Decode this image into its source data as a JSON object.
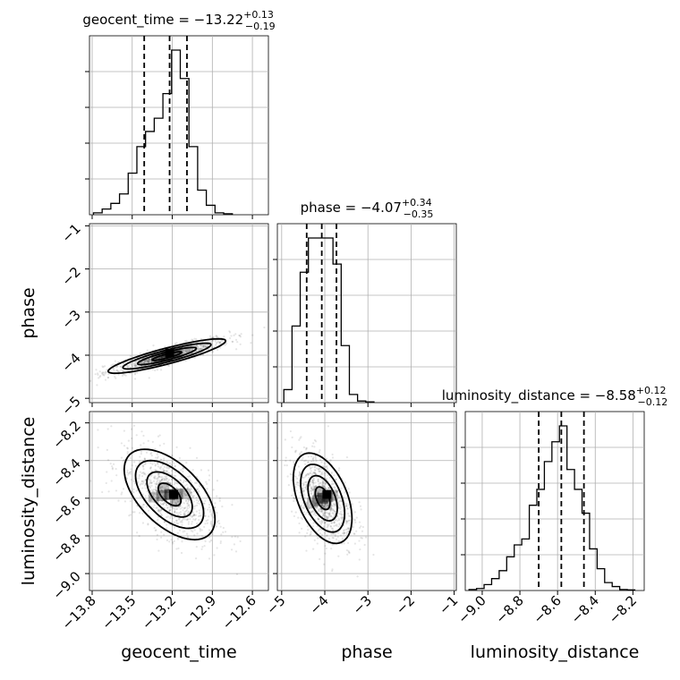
{
  "chart_data": {
    "type": "corner",
    "parameters": [
      "geocent_time",
      "phase",
      "luminosity_distance"
    ],
    "axis_labels": {
      "geocent_time": "geocent_time",
      "phase": "phase",
      "luminosity_distance": "luminosity_distance"
    },
    "ranges": {
      "geocent_time": [
        -13.82,
        -12.48
      ],
      "phase": [
        -5.1,
        -0.95
      ],
      "luminosity_distance": [
        -9.09,
        -8.14
      ]
    },
    "ticks": {
      "geocent_time": [
        {
          "v": -13.8,
          "label": "−13.8"
        },
        {
          "v": -13.5,
          "label": "−13.5"
        },
        {
          "v": -13.2,
          "label": "−13.2"
        },
        {
          "v": -12.9,
          "label": "−12.9"
        },
        {
          "v": -12.6,
          "label": "−12.6"
        }
      ],
      "phase": [
        {
          "v": -5,
          "label": "−5"
        },
        {
          "v": -4,
          "label": "−4"
        },
        {
          "v": -3,
          "label": "−3"
        },
        {
          "v": -2,
          "label": "−2"
        },
        {
          "v": -1,
          "label": "−1"
        }
      ],
      "luminosity_distance": [
        {
          "v": -9.0,
          "label": "−9.0"
        },
        {
          "v": -8.8,
          "label": "−8.8"
        },
        {
          "v": -8.6,
          "label": "−8.6"
        },
        {
          "v": -8.4,
          "label": "−8.4"
        },
        {
          "v": -8.2,
          "label": "−8.2"
        }
      ]
    },
    "titles": [
      {
        "param": "geocent_time",
        "text": "geocent_time = −13.22",
        "plus": "+0.13",
        "minus": "−0.19"
      },
      {
        "param": "phase",
        "text": "phase = −4.07",
        "plus": "+0.34",
        "minus": "−0.35"
      },
      {
        "param": "luminosity_distance",
        "text": "luminosity_distance = −8.58",
        "plus": "+0.12",
        "minus": "−0.12"
      }
    ],
    "quantiles": {
      "geocent_time": [
        -13.41,
        -13.22,
        -13.09
      ],
      "phase": [
        -4.42,
        -4.07,
        -3.73
      ],
      "luminosity_distance": [
        -8.7,
        -8.58,
        -8.46
      ]
    },
    "histograms": {
      "geocent_time": {
        "edges": [
          -13.79,
          -13.725,
          -13.66,
          -13.595,
          -13.53,
          -13.465,
          -13.4,
          -13.335,
          -13.27,
          -13.205,
          -13.14,
          -13.075,
          -13.01,
          -12.945,
          -12.88,
          -12.815,
          -12.75
        ],
        "counts": [
          0.01,
          0.03,
          0.06,
          0.11,
          0.22,
          0.36,
          0.44,
          0.51,
          0.64,
          0.87,
          0.72,
          0.36,
          0.13,
          0.05,
          0.01,
          0.005
        ]
      },
      "phase": {
        "edges": [
          -4.95,
          -4.76,
          -4.57,
          -4.38,
          -4.19,
          -4.0,
          -3.81,
          -3.62,
          -3.43,
          -3.24,
          -3.05,
          -2.86
        ],
        "counts": [
          0.08,
          0.47,
          0.8,
          1.01,
          1.01,
          1.01,
          0.85,
          0.35,
          0.05,
          0.01,
          0.005
        ]
      },
      "luminosity_distance": {
        "edges": [
          -9.07,
          -9.03,
          -8.99,
          -8.95,
          -8.91,
          -8.87,
          -8.83,
          -8.79,
          -8.75,
          -8.71,
          -8.67,
          -8.63,
          -8.59,
          -8.55,
          -8.51,
          -8.47,
          -8.43,
          -8.39,
          -8.35,
          -8.31,
          -8.27,
          -8.23,
          -8.19
        ],
        "counts": [
          0.005,
          0.01,
          0.03,
          0.06,
          0.1,
          0.17,
          0.23,
          0.26,
          0.43,
          0.51,
          0.65,
          0.75,
          0.83,
          0.61,
          0.51,
          0.39,
          0.21,
          0.11,
          0.04,
          0.02,
          0.005,
          0.003
        ]
      }
    },
    "density_2d": [
      {
        "x": "geocent_time",
        "y": "phase",
        "center": [
          -13.24,
          -4.02
        ],
        "sigma": [
          0.22,
          0.2
        ],
        "rho": 0.88,
        "contour_levels_sigma": [
          0.5,
          1.0,
          1.5,
          2.0
        ],
        "peak": [
          -13.22,
          -3.95
        ]
      },
      {
        "x": "geocent_time",
        "y": "luminosity_distance",
        "center": [
          -13.22,
          -8.58
        ],
        "sigma": [
          0.17,
          0.12
        ],
        "rho": -0.55,
        "contour_levels_sigma": [
          0.5,
          1.0,
          1.5,
          2.0
        ],
        "peak": [
          -13.19,
          -8.58
        ]
      },
      {
        "x": "phase",
        "y": "luminosity_distance",
        "center": [
          -4.05,
          -8.6
        ],
        "sigma": [
          0.34,
          0.12
        ],
        "rho": -0.45,
        "contour_levels_sigma": [
          0.5,
          1.0,
          1.5,
          2.0
        ],
        "peak": [
          -3.95,
          -8.58
        ]
      }
    ],
    "grid": true,
    "colors": {
      "line": "#000000",
      "grid": "#b0b0b0",
      "background": "#ffffff"
    }
  }
}
